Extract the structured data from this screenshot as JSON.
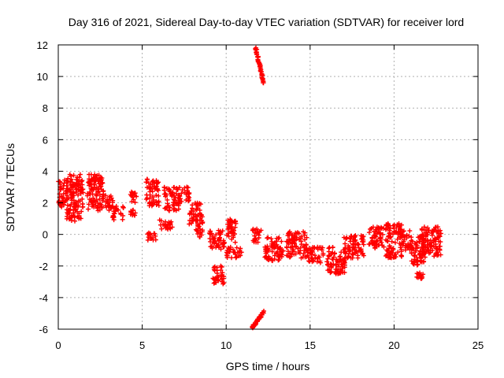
{
  "chart_data": {
    "type": "scatter",
    "title": "Day 316 of 2021, Sidereal Day-to-day VTEC variation (SDTVAR) for receiver lord",
    "xlabel": "GPS time / hours",
    "ylabel": "SDTVAR / TECUs",
    "xlim": [
      0,
      25
    ],
    "ylim": [
      -6,
      12
    ],
    "xticks": [
      0,
      5,
      10,
      15,
      20,
      25
    ],
    "yticks": [
      -6,
      -4,
      -2,
      0,
      2,
      4,
      6,
      8,
      10,
      12
    ],
    "grid": true,
    "marker": "+",
    "color": "#ff0000",
    "clusters": [
      {
        "x": [
          0.0,
          0.5
        ],
        "y": [
          1.7,
          3.5
        ]
      },
      {
        "x": [
          0.5,
          1.5
        ],
        "y": [
          0.8,
          3.8
        ]
      },
      {
        "x": [
          1.7,
          2.7
        ],
        "y": [
          1.5,
          3.8
        ]
      },
      {
        "x": [
          2.8,
          3.3
        ],
        "y": [
          1.5,
          2.5
        ]
      },
      {
        "x": [
          3.2,
          3.9
        ],
        "y": [
          0.9,
          1.8
        ]
      },
      {
        "x": [
          4.3,
          4.7
        ],
        "y": [
          2.0,
          2.8
        ]
      },
      {
        "x": [
          4.3,
          4.6
        ],
        "y": [
          1.0,
          1.6
        ]
      },
      {
        "x": [
          5.2,
          6.0
        ],
        "y": [
          1.8,
          3.5
        ]
      },
      {
        "x": [
          5.2,
          5.9
        ],
        "y": [
          -0.4,
          0.1
        ]
      },
      {
        "x": [
          6.3,
          7.2
        ],
        "y": [
          1.5,
          3.0
        ]
      },
      {
        "x": [
          6.0,
          6.8
        ],
        "y": [
          0.3,
          1.0
        ]
      },
      {
        "x": [
          7.2,
          7.8
        ],
        "y": [
          2.0,
          3.0
        ]
      },
      {
        "x": [
          7.8,
          8.6
        ],
        "y": [
          0.5,
          2.0
        ]
      },
      {
        "x": [
          8.2,
          8.6
        ],
        "y": [
          -0.3,
          0.4
        ]
      },
      {
        "x": [
          9.0,
          9.9
        ],
        "y": [
          -1.0,
          0.3
        ]
      },
      {
        "x": [
          9.2,
          9.9
        ],
        "y": [
          -3.2,
          -2.0
        ]
      },
      {
        "x": [
          10.0,
          10.6
        ],
        "y": [
          -0.5,
          1.0
        ]
      },
      {
        "x": [
          10.0,
          11.0
        ],
        "y": [
          -1.5,
          -0.8
        ]
      },
      {
        "x": [
          11.5,
          12.1
        ],
        "y": [
          -0.5,
          0.4
        ]
      },
      {
        "x": [
          12.3,
          13.4
        ],
        "y": [
          -1.7,
          -0.2
        ]
      },
      {
        "x": [
          13.6,
          14.8
        ],
        "y": [
          -1.5,
          0.2
        ]
      },
      {
        "x": [
          14.8,
          15.8
        ],
        "y": [
          -1.8,
          -0.8
        ]
      },
      {
        "x": [
          16.0,
          17.1
        ],
        "y": [
          -2.5,
          -0.8
        ]
      },
      {
        "x": [
          17.0,
          18.2
        ],
        "y": [
          -1.5,
          0.0
        ]
      },
      {
        "x": [
          18.5,
          19.4
        ],
        "y": [
          -1.0,
          0.5
        ]
      },
      {
        "x": [
          19.5,
          20.5
        ],
        "y": [
          -1.5,
          0.7
        ]
      },
      {
        "x": [
          20.5,
          21.0
        ],
        "y": [
          -1.0,
          0.3
        ]
      },
      {
        "x": [
          21.0,
          21.8
        ],
        "y": [
          -2.0,
          0.0
        ]
      },
      {
        "x": [
          21.6,
          22.8
        ],
        "y": [
          -1.5,
          0.5
        ]
      },
      {
        "x": [
          21.3,
          21.8
        ],
        "y": [
          -2.8,
          -2.4
        ]
      }
    ],
    "tracks": [
      {
        "x0": 11.75,
        "y0": 11.8,
        "x1": 12.25,
        "y1": 9.6
      },
      {
        "x0": 11.55,
        "y0": -5.9,
        "x1": 12.25,
        "y1": -4.9
      }
    ]
  }
}
